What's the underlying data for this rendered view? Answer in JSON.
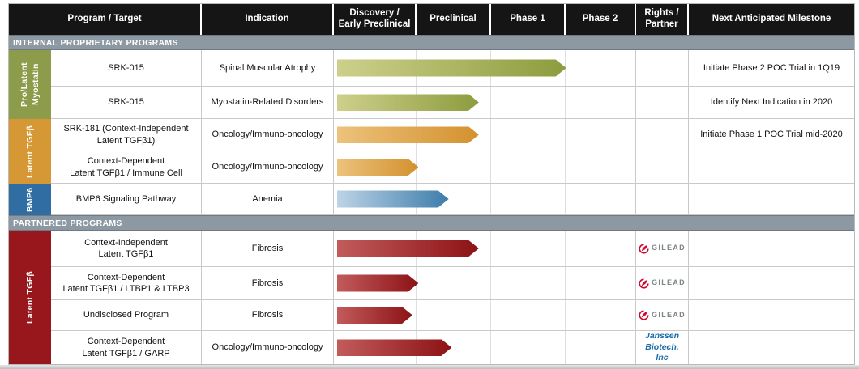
{
  "colors": {
    "header_bg": "#151515",
    "section_bar": "#8d99a2",
    "group_myostatin": "#8d9c4a",
    "group_tgfb_internal": "#d69834",
    "group_bmp6": "#2f6da3",
    "group_tgfb_partnered": "#97171c",
    "arrow_green_start": "#cdd08b",
    "arrow_green_end": "#8d9c3e",
    "arrow_orange_start": "#ecc27c",
    "arrow_orange_end": "#d3912e",
    "arrow_blue_start": "#bdd4e6",
    "arrow_blue_end": "#3c7cab",
    "arrow_red_start": "#c25b5b",
    "arrow_red_end": "#8c1215",
    "gilead_red": "#cf0a2c",
    "gilead_gray": "#7d8589",
    "janssen_blue": "#1a6ca8"
  },
  "columns": {
    "program": "Program / Target",
    "indication": "Indication",
    "discovery": "Discovery /\nEarly Preclinical",
    "preclinical": "Preclinical",
    "phase1": "Phase 1",
    "phase2": "Phase 2",
    "rights": "Rights /\nPartner",
    "milestone": "Next Anticipated Milestone"
  },
  "sections": {
    "internal": "INTERNAL PROPRIETARY PROGRAMS",
    "partnered": "PARTNERED PROGRAMS"
  },
  "groups": {
    "myostatin": {
      "label": "Pro/Latent\nMyostatin"
    },
    "tgfb_internal": {
      "label": "Latent TGFβ"
    },
    "bmp6": {
      "label": "BMP6"
    },
    "tgfb_partnered": {
      "label": "Latent TGFβ"
    }
  },
  "partners": {
    "gilead": "GILEAD",
    "janssen": "Janssen\nBiotech, Inc"
  },
  "rows": [
    {
      "program": "SRK-015",
      "indication": "Spinal Muscular Atrophy",
      "end_pct": 76,
      "milestone": "Initiate Phase 2 POC Trial in 1Q19"
    },
    {
      "program": "SRK-015",
      "indication": "Myostatin-Related Disorders",
      "end_pct": 47,
      "milestone": "Identify Next Indication in 2020"
    },
    {
      "program": "SRK-181 (Context-Independent\nLatent TGFβ1)",
      "indication": "Oncology/Immuno-oncology",
      "end_pct": 47,
      "milestone": "Initiate Phase 1 POC Trial mid-2020"
    },
    {
      "program": "Context-Dependent\nLatent TGFβ1 / Immune Cell",
      "indication": "Oncology/Immuno-oncology",
      "end_pct": 27,
      "milestone": ""
    },
    {
      "program": "BMP6 Signaling Pathway",
      "indication": "Anemia",
      "end_pct": 37,
      "milestone": ""
    },
    {
      "program": "Context-Independent\nLatent TGFβ1",
      "indication": "Fibrosis",
      "end_pct": 47,
      "milestone": ""
    },
    {
      "program": "Context-Dependent\nLatent TGFβ1 / LTBP1 & LTBP3",
      "indication": "Fibrosis",
      "end_pct": 27,
      "milestone": ""
    },
    {
      "program": "Undisclosed Program",
      "indication": "Fibrosis",
      "end_pct": 25,
      "milestone": ""
    },
    {
      "program": "Context-Dependent\nLatent TGFβ1 / GARP",
      "indication": "Oncology/Immuno-oncology",
      "end_pct": 38,
      "milestone": ""
    }
  ]
}
